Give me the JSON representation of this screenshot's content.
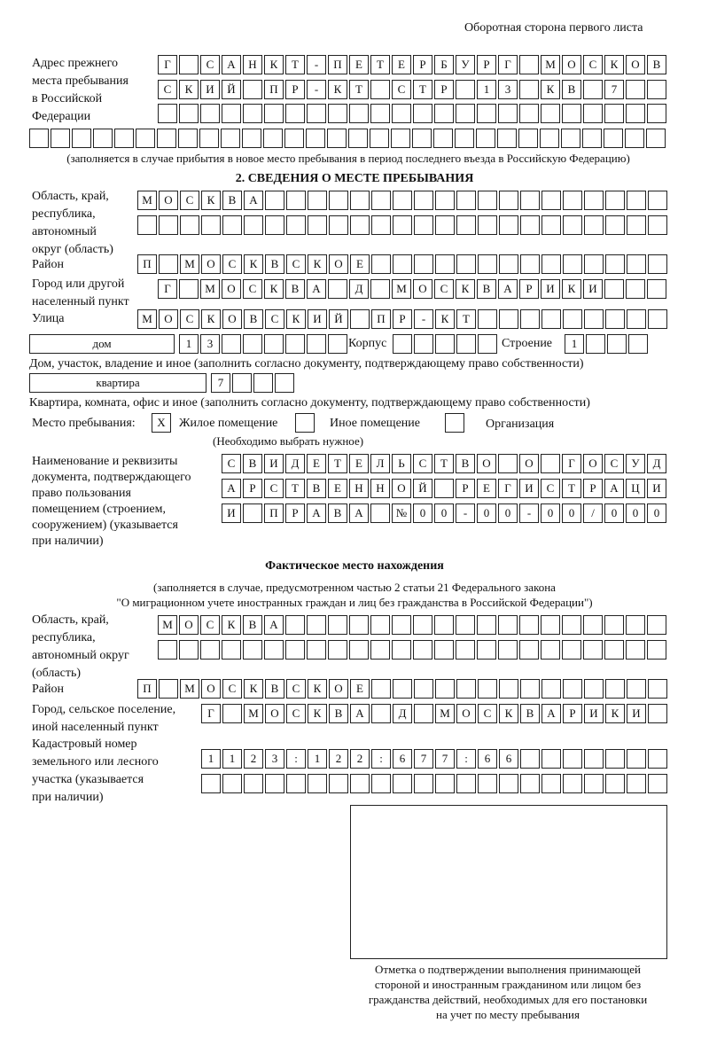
{
  "header": {
    "page_side": "Оборотная сторона первого листа"
  },
  "previous_address": {
    "label": "Адрес прежнего\nместа пребывания\nв Российской\nФедерации",
    "rows": [
      [
        "Г",
        "",
        "С",
        "А",
        "Н",
        "К",
        "Т",
        "-",
        "П",
        "Е",
        "Т",
        "Е",
        "Р",
        "Б",
        "У",
        "Р",
        "Г",
        "",
        "М",
        "О",
        "С",
        "К",
        "О",
        "В"
      ],
      [
        "С",
        "К",
        "И",
        "Й",
        "",
        "П",
        "Р",
        "-",
        "К",
        "Т",
        "",
        "С",
        "Т",
        "Р",
        "",
        "1",
        "3",
        "",
        "К",
        "В",
        "",
        "7",
        "",
        ""
      ],
      [
        "",
        "",
        "",
        "",
        "",
        "",
        "",
        "",
        "",
        "",
        "",
        "",
        "",
        "",
        "",
        "",
        "",
        "",
        "",
        "",
        "",
        "",
        "",
        ""
      ],
      [
        "",
        "",
        "",
        "",
        "",
        "",
        "",
        "",
        "",
        "",
        "",
        "",
        "",
        "",
        "",
        "",
        "",
        "",
        "",
        "",
        "",
        "",
        "",
        "",
        "",
        "",
        "",
        "",
        "",
        ""
      ]
    ],
    "note": "(заполняется в случае прибытия в новое место пребывания в период последнего въезда в Российскую Федерацию)"
  },
  "stay": {
    "section_title": "2. СВЕДЕНИЯ О МЕСТЕ ПРЕБЫВАНИЯ",
    "region_label": "Область, край,\nреспублика,\nавтономный\nокруг (область)",
    "region_rows": [
      [
        "М",
        "О",
        "С",
        "К",
        "В",
        "А",
        "",
        "",
        "",
        "",
        "",
        "",
        "",
        "",
        "",
        "",
        "",
        "",
        "",
        "",
        "",
        "",
        "",
        "",
        ""
      ],
      [
        "",
        "",
        "",
        "",
        "",
        "",
        "",
        "",
        "",
        "",
        "",
        "",
        "",
        "",
        "",
        "",
        "",
        "",
        "",
        "",
        "",
        "",
        "",
        "",
        ""
      ]
    ],
    "district_label": "Район",
    "district": [
      "П",
      "",
      "М",
      "О",
      "С",
      "К",
      "В",
      "С",
      "К",
      "О",
      "Е",
      "",
      "",
      "",
      "",
      "",
      "",
      "",
      "",
      "",
      "",
      "",
      "",
      "",
      ""
    ],
    "city_label": "Город или другой\nнаселенный пункт",
    "city": [
      "Г",
      "",
      "М",
      "О",
      "С",
      "К",
      "В",
      "А",
      "",
      "Д",
      "",
      "М",
      "О",
      "С",
      "К",
      "В",
      "А",
      "Р",
      "И",
      "К",
      "И",
      "",
      "",
      ""
    ],
    "street_label": "Улица",
    "street": [
      "М",
      "О",
      "С",
      "К",
      "О",
      "В",
      "С",
      "К",
      "И",
      "Й",
      "",
      "П",
      "Р",
      "-",
      "К",
      "Т",
      "",
      "",
      "",
      "",
      "",
      "",
      "",
      "",
      ""
    ],
    "house_type": "дом",
    "house": [
      "1",
      "3",
      "",
      "",
      "",
      "",
      "",
      ""
    ],
    "building_label": "Корпус",
    "building": [
      "",
      "",
      "",
      "",
      ""
    ],
    "structure_label": "Строение",
    "structure": [
      "1",
      "",
      "",
      ""
    ],
    "house_note": "Дом, участок, владение и иное (заполнить согласно документу, подтверждающему право собственности)",
    "apt_type": "квартира",
    "apartment": [
      "7",
      "",
      "",
      ""
    ],
    "apt_note": "Квартира, комната, офис и иное (заполнить согласно документу, подтверждающему право собственности)",
    "place_label": "Место пребывания:",
    "place_options": [
      {
        "mark": "X",
        "label": "Жилое помещение",
        "checked": true
      },
      {
        "mark": "",
        "label": "Иное помещение",
        "checked": false
      },
      {
        "mark": "",
        "label": "Организация",
        "checked": false
      }
    ],
    "place_note": "(Необходимо выбрать нужное)",
    "doc_label": "Наименование и реквизиты\nдокумента, подтверждающего\nправо пользования\nпомещением (строением,\nсооружением) (указывается\nпри наличии)",
    "doc_rows": [
      [
        "С",
        "В",
        "И",
        "Д",
        "Е",
        "Т",
        "Е",
        "Л",
        "Ь",
        "С",
        "Т",
        "В",
        "О",
        "",
        "О",
        "",
        "Г",
        "О",
        "С",
        "У",
        "Д"
      ],
      [
        "А",
        "Р",
        "С",
        "Т",
        "В",
        "Е",
        "Н",
        "Н",
        "О",
        "Й",
        "",
        "Р",
        "Е",
        "Г",
        "И",
        "С",
        "Т",
        "Р",
        "А",
        "Ц",
        "И"
      ],
      [
        "И",
        "",
        "П",
        "Р",
        "А",
        "В",
        "А",
        "",
        "№",
        "0",
        "0",
        "-",
        "0",
        "0",
        "-",
        "0",
        "0",
        "/",
        "0",
        "0",
        "0"
      ]
    ]
  },
  "actual": {
    "title": "Фактическое место нахождения",
    "note1": "(заполняется в случае, предусмотренном частью 2 статьи 21 Федерального закона",
    "note2": "\"О миграционном учете иностранных граждан и лиц без гражданства в Российской Федерации\")",
    "region_label": "Область, край,\nреспублика,\nавтономный округ\n(область)",
    "region_rows": [
      [
        "М",
        "О",
        "С",
        "К",
        "В",
        "А",
        "",
        "",
        "",
        "",
        "",
        "",
        "",
        "",
        "",
        "",
        "",
        "",
        "",
        "",
        "",
        "",
        "",
        ""
      ],
      [
        "",
        "",
        "",
        "",
        "",
        "",
        "",
        "",
        "",
        "",
        "",
        "",
        "",
        "",
        "",
        "",
        "",
        "",
        "",
        "",
        "",
        "",
        "",
        ""
      ]
    ],
    "district_label": "Район",
    "district": [
      "П",
      "",
      "М",
      "О",
      "С",
      "К",
      "В",
      "С",
      "К",
      "О",
      "Е",
      "",
      "",
      "",
      "",
      "",
      "",
      "",
      "",
      "",
      "",
      "",
      "",
      "",
      ""
    ],
    "city_label": "Город, сельское поселение,\nиной населенный пункт",
    "city": [
      "Г",
      "",
      "М",
      "О",
      "С",
      "К",
      "В",
      "А",
      "",
      "Д",
      "",
      "М",
      "О",
      "С",
      "К",
      "В",
      "А",
      "Р",
      "И",
      "К",
      "И",
      ""
    ],
    "cadastral_label": "Кадастровый номер\nземельного или лесного\nучастка (указывается\nпри наличии)",
    "cadastral_rows": [
      [
        "1",
        "1",
        "2",
        "3",
        ":",
        "1",
        "2",
        "2",
        ":",
        "6",
        "7",
        "7",
        ":",
        "6",
        "6",
        "",
        "",
        "",
        "",
        "",
        "",
        ""
      ],
      [
        "",
        "",
        "",
        "",
        "",
        "",
        "",
        "",
        "",
        "",
        "",
        "",
        "",
        "",
        "",
        "",
        "",
        "",
        "",
        "",
        "",
        ""
      ]
    ]
  },
  "confirmation": {
    "caption": "Отметка о подтверждении выполнения принимающей\nстороной и иностранным гражданином или лицом без\nгражданства действий, необходимых для его постановки\nна учет по месту пребывания"
  }
}
